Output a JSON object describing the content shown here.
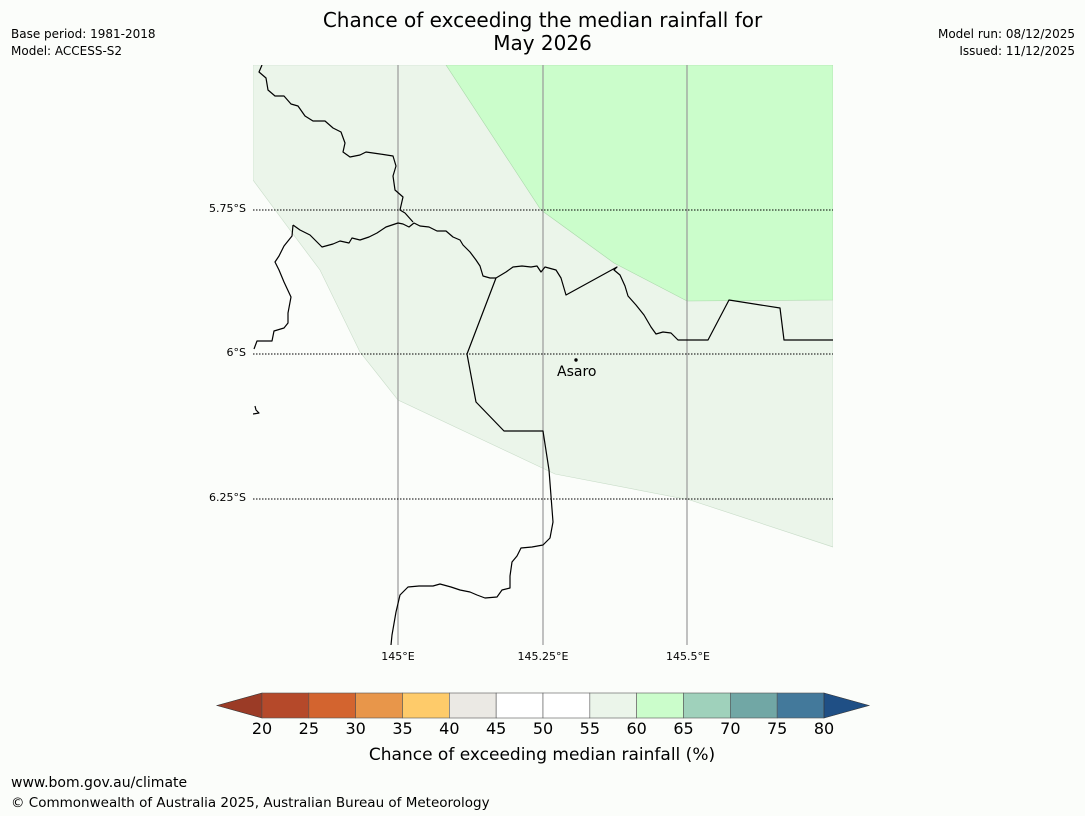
{
  "title": {
    "line1": "Chance of exceeding the median rainfall for",
    "line2": "May 2026"
  },
  "meta_left": {
    "base_period": "Base period: 1981-2018",
    "model": "Model: ACCESS-S2"
  },
  "meta_right": {
    "model_run": "Model run: 08/12/2025",
    "issued": "Issued: 11/12/2025"
  },
  "map": {
    "lat_labels": [
      "5.75°S",
      "6°S",
      "6.25°S"
    ],
    "lon_labels": [
      "145°E",
      "145.25°E",
      "145.5°E"
    ],
    "place_label": "Asaro"
  },
  "colorbar": {
    "ticks": [
      "20",
      "25",
      "30",
      "35",
      "40",
      "45",
      "50",
      "55",
      "60",
      "65",
      "70",
      "75",
      "80"
    ],
    "label": "Chance of exceeding median rainfall (%)",
    "colors": [
      "#b5492a",
      "#d3642f",
      "#e8964a",
      "#fecb6a",
      "#ebe9e4",
      "#ffffff",
      "#ffffff",
      "#ebf5ea",
      "#cbfdcb",
      "#9fd1bb",
      "#71a7a5",
      "#43799b"
    ],
    "under_color": "#9b3b26",
    "over_color": "#1f4f85",
    "region_fill_55_60": "#ebf5ea",
    "region_fill_60_65": "#cbfdcb"
  },
  "footer": {
    "url": "www.bom.gov.au/climate",
    "copyright": "© Commonwealth of Australia 2025, Australian Bureau of Meteorology"
  }
}
